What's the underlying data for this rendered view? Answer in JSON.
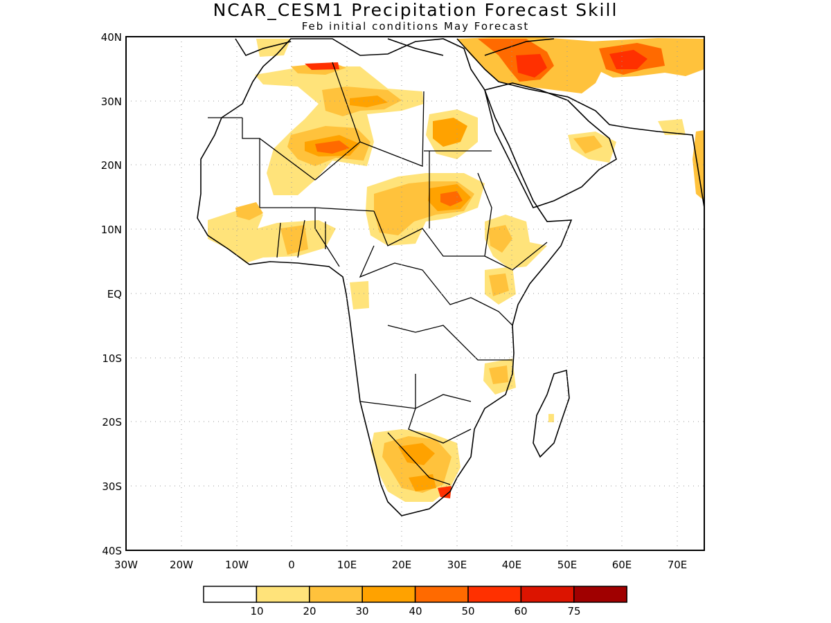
{
  "title": "NCAR_CESM1 Precipitation Forecast Skill",
  "subtitle": "Feb initial conditions  May Forecast",
  "map": {
    "lon_range": [
      -30,
      75
    ],
    "lat_range": [
      -40,
      40
    ],
    "lon_labels": [
      "30W",
      "20W",
      "10W",
      "0",
      "10E",
      "20E",
      "30E",
      "40E",
      "50E",
      "60E",
      "70E"
    ],
    "lat_labels": [
      "40N",
      "30N",
      "20N",
      "10N",
      "EQ",
      "10S",
      "20S",
      "30S",
      "40S"
    ],
    "grid": true
  },
  "colorbar": {
    "colors": [
      "#ffffff",
      "#ffe37a",
      "#ffc23c",
      "#ffa200",
      "#ff6a00",
      "#ff3000",
      "#dc1400",
      "#a00000"
    ],
    "labels": [
      "10",
      "20",
      "30",
      "40",
      "50",
      "60",
      "75"
    ]
  }
}
